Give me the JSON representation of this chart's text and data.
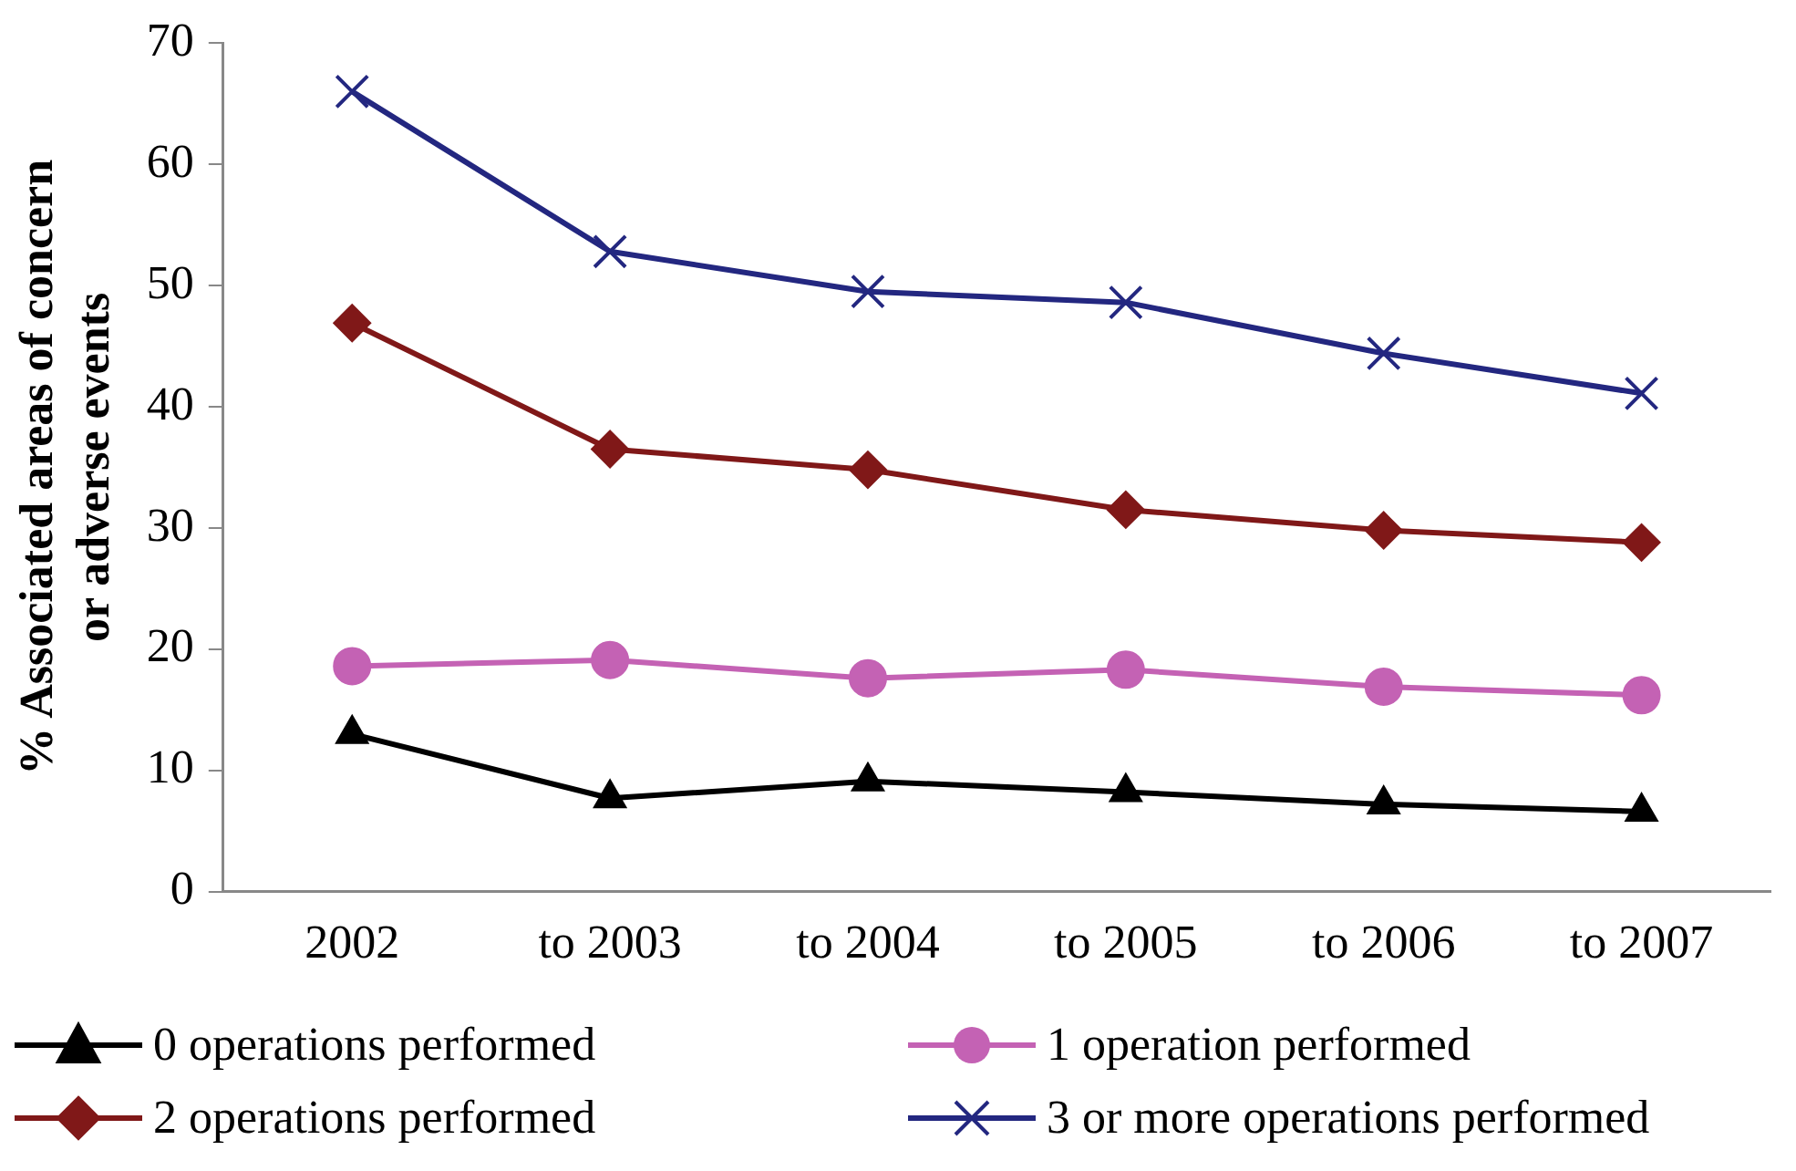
{
  "chart_data": {
    "type": "line",
    "ylabel": "% Associated areas of concern or adverse events",
    "categories": [
      "2002",
      "to 2003",
      "to 2004",
      "to 2005",
      "to 2006",
      "to 2007"
    ],
    "ylim": [
      0,
      70
    ],
    "yticks": [
      0,
      10,
      20,
      30,
      40,
      50,
      60,
      70
    ],
    "grid": false,
    "legend": "bottom",
    "series": [
      {
        "name": "0 operations performed",
        "color": "#000000",
        "marker": "triangle",
        "values": [
          13,
          7.7,
          9.1,
          8.2,
          7.2,
          6.6
        ]
      },
      {
        "name": "1 operation performed",
        "color": "#c462b4",
        "marker": "circle",
        "values": [
          18.6,
          19.1,
          17.6,
          18.3,
          16.9,
          16.2
        ]
      },
      {
        "name": "2 operations performed",
        "color": "#801818",
        "marker": "diamond",
        "values": [
          46.9,
          36.5,
          34.8,
          31.5,
          29.8,
          28.8
        ]
      },
      {
        "name": "3 or more operations performed",
        "color": "#232780",
        "marker": "cross",
        "values": [
          66,
          52.8,
          49.5,
          48.6,
          44.4,
          41.1
        ]
      }
    ]
  }
}
